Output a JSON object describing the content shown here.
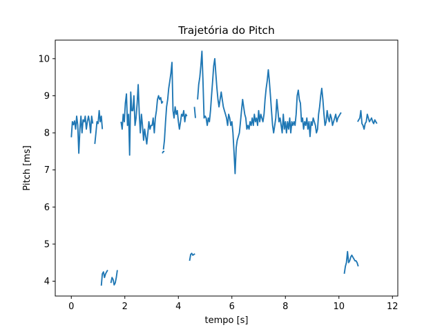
{
  "chart_data": {
    "type": "line",
    "title": "Trajetória do Pitch",
    "xlabel": "tempo [s]",
    "ylabel": "Pitch [ms]",
    "xlim": [
      -0.6,
      12.2
    ],
    "ylim": [
      3.6,
      10.5
    ],
    "xticks": [
      0,
      2,
      4,
      6,
      8,
      10,
      12
    ],
    "yticks": [
      4,
      5,
      6,
      7,
      8,
      9,
      10
    ],
    "grid": false,
    "color": "#1f77b4",
    "segments": [
      [
        [
          0.0,
          7.88
        ],
        [
          0.04,
          8.3
        ],
        [
          0.08,
          8.22
        ],
        [
          0.12,
          8.32
        ],
        [
          0.16,
          8.1
        ],
        [
          0.2,
          8.45
        ],
        [
          0.24,
          8.2
        ],
        [
          0.28,
          7.45
        ],
        [
          0.32,
          8.1
        ],
        [
          0.36,
          8.45
        ],
        [
          0.4,
          8.0
        ],
        [
          0.44,
          8.35
        ],
        [
          0.48,
          8.3
        ],
        [
          0.52,
          8.45
        ],
        [
          0.56,
          8.1
        ],
        [
          0.6,
          8.3
        ],
        [
          0.64,
          8.45
        ],
        [
          0.68,
          8.3
        ],
        [
          0.72,
          8.0
        ],
        [
          0.76,
          8.45
        ],
        [
          0.8,
          8.25
        ]
      ],
      [
        [
          0.88,
          7.7
        ],
        [
          0.92,
          8.0
        ],
        [
          0.96,
          8.3
        ],
        [
          1.0,
          8.25
        ],
        [
          1.04,
          8.6
        ],
        [
          1.08,
          8.3
        ],
        [
          1.12,
          8.45
        ],
        [
          1.16,
          8.1
        ]
      ],
      [
        [
          1.12,
          3.88
        ],
        [
          1.16,
          4.2
        ],
        [
          1.2,
          4.25
        ],
        [
          1.24,
          4.1
        ],
        [
          1.28,
          4.2
        ],
        [
          1.32,
          4.25
        ],
        [
          1.36,
          4.3
        ]
      ],
      [
        [
          1.48,
          3.95
        ],
        [
          1.52,
          4.1
        ],
        [
          1.56,
          4.05
        ],
        [
          1.6,
          3.9
        ],
        [
          1.64,
          3.95
        ],
        [
          1.68,
          4.1
        ],
        [
          1.72,
          4.3
        ]
      ],
      [
        [
          1.86,
          8.3
        ],
        [
          1.9,
          8.1
        ],
        [
          1.94,
          8.5
        ],
        [
          1.98,
          8.3
        ],
        [
          2.02,
          8.8
        ],
        [
          2.06,
          9.05
        ],
        [
          2.1,
          8.2
        ],
        [
          2.14,
          8.5
        ],
        [
          2.18,
          7.4
        ],
        [
          2.22,
          9.1
        ],
        [
          2.26,
          8.6
        ],
        [
          2.3,
          8.6
        ],
        [
          2.34,
          9.0
        ],
        [
          2.38,
          8.2
        ],
        [
          2.42,
          8.4
        ],
        [
          2.46,
          8.8
        ],
        [
          2.5,
          9.3
        ],
        [
          2.54,
          8.5
        ],
        [
          2.58,
          8.0
        ],
        [
          2.62,
          8.5
        ],
        [
          2.66,
          8.2
        ],
        [
          2.7,
          7.8
        ],
        [
          2.74,
          8.1
        ],
        [
          2.78,
          7.9
        ],
        [
          2.82,
          7.7
        ],
        [
          2.86,
          8.0
        ],
        [
          2.9,
          8.3
        ],
        [
          2.94,
          8.1
        ],
        [
          2.98,
          8.2
        ],
        [
          3.02,
          8.2
        ],
        [
          3.06,
          8.4
        ],
        [
          3.1,
          8.0
        ],
        [
          3.14,
          8.4
        ],
        [
          3.18,
          8.6
        ],
        [
          3.22,
          8.9
        ],
        [
          3.26,
          9.0
        ],
        [
          3.3,
          8.9
        ],
        [
          3.34,
          8.95
        ],
        [
          3.38,
          8.8
        ],
        [
          3.42,
          8.85
        ]
      ],
      [
        [
          3.4,
          7.45
        ],
        [
          3.44,
          7.5
        ],
        [
          3.48,
          7.5
        ]
      ],
      [
        [
          3.44,
          7.55
        ],
        [
          3.48,
          7.8
        ],
        [
          3.52,
          8.3
        ],
        [
          3.56,
          8.7
        ],
        [
          3.6,
          8.9
        ],
        [
          3.64,
          9.2
        ],
        [
          3.68,
          9.4
        ],
        [
          3.72,
          9.6
        ],
        [
          3.76,
          9.9
        ],
        [
          3.8,
          8.6
        ],
        [
          3.84,
          8.4
        ],
        [
          3.88,
          8.7
        ],
        [
          3.92,
          8.5
        ],
        [
          3.96,
          8.6
        ],
        [
          4.0,
          8.3
        ],
        [
          4.04,
          8.1
        ],
        [
          4.08,
          8.3
        ],
        [
          4.12,
          8.5
        ],
        [
          4.16,
          8.45
        ],
        [
          4.2,
          8.6
        ],
        [
          4.24,
          8.3
        ],
        [
          4.28,
          8.5
        ],
        [
          4.32,
          8.45
        ]
      ],
      [
        [
          4.42,
          4.55
        ],
        [
          4.46,
          4.72
        ],
        [
          4.5,
          4.75
        ],
        [
          4.54,
          4.7
        ],
        [
          4.58,
          4.72
        ],
        [
          4.62,
          4.74
        ]
      ],
      [
        [
          4.6,
          8.7
        ],
        [
          4.64,
          8.4
        ]
      ],
      [
        [
          4.72,
          8.9
        ],
        [
          4.76,
          9.3
        ],
        [
          4.8,
          9.5
        ],
        [
          4.84,
          9.8
        ],
        [
          4.88,
          10.2
        ],
        [
          4.92,
          9.4
        ],
        [
          4.96,
          8.4
        ],
        [
          5.0,
          8.45
        ],
        [
          5.04,
          8.4
        ],
        [
          5.08,
          8.2
        ],
        [
          5.12,
          8.4
        ],
        [
          5.16,
          8.3
        ],
        [
          5.2,
          8.6
        ],
        [
          5.24,
          9.0
        ],
        [
          5.28,
          9.4
        ],
        [
          5.32,
          9.8
        ],
        [
          5.36,
          10.0
        ],
        [
          5.4,
          9.6
        ],
        [
          5.44,
          9.2
        ],
        [
          5.48,
          8.9
        ],
        [
          5.52,
          8.7
        ],
        [
          5.56,
          8.9
        ],
        [
          5.6,
          9.1
        ],
        [
          5.64,
          8.9
        ],
        [
          5.68,
          8.7
        ],
        [
          5.72,
          8.6
        ],
        [
          5.76,
          8.5
        ],
        [
          5.8,
          8.4
        ],
        [
          5.84,
          8.2
        ],
        [
          5.88,
          8.5
        ],
        [
          5.92,
          8.4
        ],
        [
          5.96,
          8.2
        ],
        [
          6.0,
          8.3
        ],
        [
          6.04,
          8.0
        ],
        [
          6.08,
          7.5
        ],
        [
          6.12,
          6.9
        ],
        [
          6.16,
          7.6
        ],
        [
          6.2,
          7.8
        ],
        [
          6.24,
          7.9
        ],
        [
          6.28,
          8.0
        ],
        [
          6.32,
          8.3
        ],
        [
          6.36,
          8.6
        ],
        [
          6.4,
          8.9
        ],
        [
          6.44,
          8.7
        ],
        [
          6.48,
          8.5
        ],
        [
          6.52,
          8.4
        ],
        [
          6.56,
          8.1
        ],
        [
          6.6,
          8.2
        ],
        [
          6.64,
          8.1
        ],
        [
          6.68,
          8.3
        ],
        [
          6.72,
          8.2
        ],
        [
          6.76,
          8.4
        ],
        [
          6.8,
          8.2
        ],
        [
          6.84,
          8.5
        ],
        [
          6.88,
          8.3
        ],
        [
          6.92,
          8.4
        ],
        [
          6.96,
          8.2
        ],
        [
          7.0,
          8.6
        ],
        [
          7.04,
          8.3
        ],
        [
          7.08,
          8.5
        ],
        [
          7.12,
          8.4
        ],
        [
          7.16,
          8.3
        ],
        [
          7.2,
          8.5
        ],
        [
          7.24,
          8.9
        ],
        [
          7.28,
          9.2
        ],
        [
          7.32,
          9.4
        ],
        [
          7.36,
          9.7
        ],
        [
          7.4,
          9.4
        ],
        [
          7.44,
          9.0
        ],
        [
          7.48,
          8.6
        ],
        [
          7.52,
          8.2
        ],
        [
          7.56,
          8.0
        ],
        [
          7.6,
          8.2
        ],
        [
          7.64,
          8.4
        ],
        [
          7.68,
          8.9
        ],
        [
          7.72,
          8.6
        ],
        [
          7.76,
          8.3
        ],
        [
          7.8,
          8.4
        ],
        [
          7.84,
          8.2
        ],
        [
          7.88,
          8.0
        ],
        [
          7.92,
          8.5
        ],
        [
          7.96,
          8.1
        ],
        [
          8.0,
          8.3
        ],
        [
          8.04,
          8.0
        ],
        [
          8.08,
          8.3
        ],
        [
          8.12,
          8.1
        ],
        [
          8.16,
          8.4
        ],
        [
          8.2,
          8.0
        ],
        [
          8.24,
          8.3
        ],
        [
          8.28,
          8.2
        ],
        [
          8.32,
          8.3
        ],
        [
          8.36,
          8.2
        ],
        [
          8.4,
          8.5
        ],
        [
          8.44,
          9.0
        ],
        [
          8.48,
          9.15
        ],
        [
          8.52,
          8.9
        ],
        [
          8.56,
          8.8
        ],
        [
          8.6,
          8.3
        ],
        [
          8.64,
          8.4
        ],
        [
          8.68,
          8.1
        ],
        [
          8.72,
          8.3
        ],
        [
          8.76,
          8.2
        ],
        [
          8.8,
          8.4
        ],
        [
          8.84,
          8.1
        ],
        [
          8.88,
          8.3
        ],
        [
          8.92,
          7.9
        ],
        [
          8.96,
          8.3
        ],
        [
          9.0,
          8.2
        ],
        [
          9.04,
          8.4
        ],
        [
          9.08,
          8.3
        ],
        [
          9.12,
          8.2
        ],
        [
          9.16,
          8.0
        ],
        [
          9.2,
          8.1
        ],
        [
          9.24,
          8.5
        ],
        [
          9.28,
          8.7
        ],
        [
          9.32,
          9.0
        ],
        [
          9.36,
          9.2
        ],
        [
          9.4,
          8.9
        ],
        [
          9.44,
          8.5
        ],
        [
          9.48,
          8.2
        ],
        [
          9.52,
          8.3
        ],
        [
          9.56,
          8.6
        ],
        [
          9.6,
          8.4
        ],
        [
          9.64,
          8.3
        ],
        [
          9.68,
          8.5
        ],
        [
          9.72,
          8.4
        ],
        [
          9.76,
          8.2
        ],
        [
          9.8,
          8.3
        ],
        [
          9.84,
          8.4
        ],
        [
          9.88,
          8.5
        ],
        [
          9.92,
          8.3
        ],
        [
          9.96,
          8.4
        ],
        [
          10.0,
          8.45
        ],
        [
          10.04,
          8.5
        ],
        [
          10.08,
          8.55
        ]
      ],
      [
        [
          10.2,
          4.2
        ],
        [
          10.24,
          4.4
        ],
        [
          10.28,
          4.5
        ],
        [
          10.32,
          4.8
        ],
        [
          10.36,
          4.5
        ],
        [
          10.4,
          4.55
        ],
        [
          10.44,
          4.65
        ],
        [
          10.48,
          4.7
        ],
        [
          10.52,
          4.65
        ],
        [
          10.56,
          4.6
        ],
        [
          10.6,
          4.55
        ],
        [
          10.64,
          4.55
        ],
        [
          10.68,
          4.5
        ],
        [
          10.72,
          4.4
        ]
      ],
      [
        [
          10.7,
          8.3
        ],
        [
          10.74,
          8.35
        ],
        [
          10.78,
          8.4
        ],
        [
          10.82,
          8.6
        ],
        [
          10.86,
          8.25
        ],
        [
          10.9,
          8.2
        ],
        [
          10.94,
          8.1
        ],
        [
          10.98,
          8.25
        ],
        [
          11.02,
          8.3
        ],
        [
          11.06,
          8.5
        ],
        [
          11.1,
          8.4
        ],
        [
          11.14,
          8.3
        ],
        [
          11.18,
          8.35
        ],
        [
          11.22,
          8.4
        ],
        [
          11.26,
          8.3
        ],
        [
          11.3,
          8.25
        ],
        [
          11.34,
          8.35
        ],
        [
          11.38,
          8.3
        ],
        [
          11.42,
          8.25
        ]
      ]
    ]
  }
}
